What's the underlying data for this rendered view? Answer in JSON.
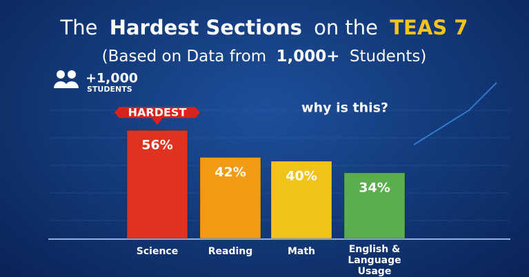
{
  "chart_data": {
    "type": "bar",
    "title_parts": [
      "The",
      "Hardest Sections",
      "on the",
      "TEAS 7"
    ],
    "subtitle_parts": [
      "(Based on Data from",
      "1,000+",
      "Students)"
    ],
    "badge": {
      "count": "+1,000",
      "label": "STUDENTS"
    },
    "annotation": "why is this?",
    "highlight_label": "HARDEST",
    "categories": [
      "Science",
      "Reading",
      "Math",
      "English & Language Usage"
    ],
    "values": [
      56,
      42,
      40,
      34
    ],
    "value_labels": [
      "56%",
      "42%",
      "40%",
      "34%"
    ],
    "colors": [
      "#e0321f",
      "#f39a14",
      "#f2c41a",
      "#5cae4c"
    ]
  }
}
